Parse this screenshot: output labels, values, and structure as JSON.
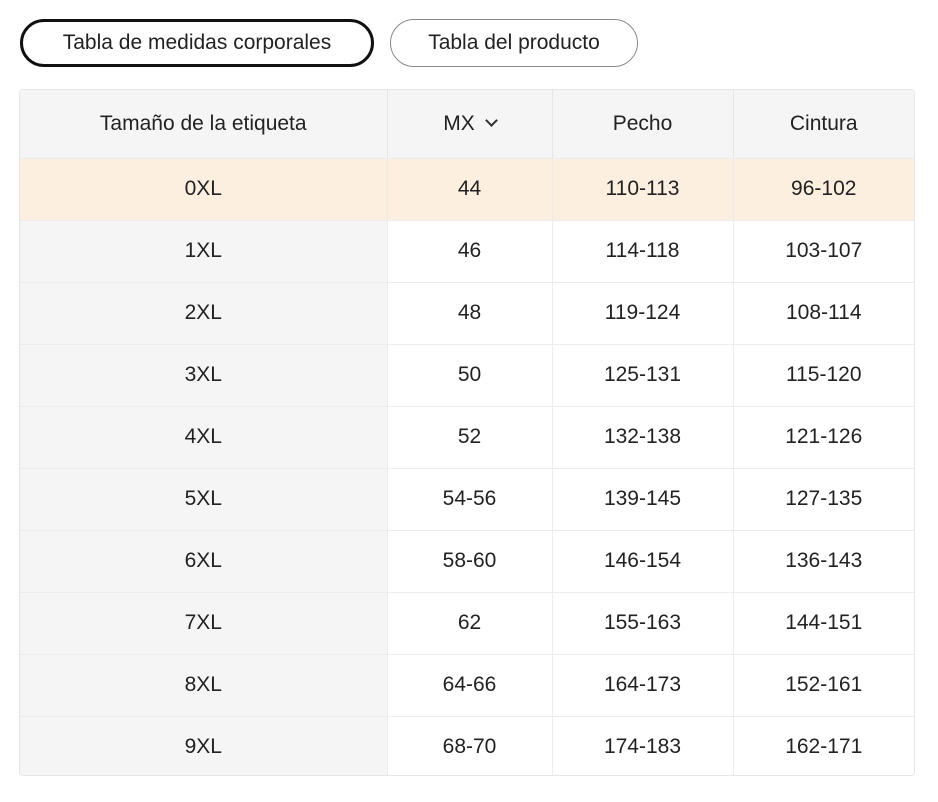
{
  "tabs": [
    {
      "label": "Tabla de medidas corporales",
      "active": true
    },
    {
      "label": "Tabla del producto",
      "active": false
    }
  ],
  "table": {
    "headers": [
      "Tamaño de la etiqueta",
      "MX",
      "Pecho",
      "Cintura"
    ],
    "rows": [
      [
        "0XL",
        "44",
        "110-113",
        "96-102"
      ],
      [
        "1XL",
        "46",
        "114-118",
        "103-107"
      ],
      [
        "2XL",
        "48",
        "119-124",
        "108-114"
      ],
      [
        "3XL",
        "50",
        "125-131",
        "115-120"
      ],
      [
        "4XL",
        "52",
        "132-138",
        "121-126"
      ],
      [
        "5XL",
        "54-56",
        "139-145",
        "127-135"
      ],
      [
        "6XL",
        "58-60",
        "146-154",
        "136-143"
      ],
      [
        "7XL",
        "62",
        "155-163",
        "144-151"
      ],
      [
        "8XL",
        "64-66",
        "164-173",
        "152-161"
      ],
      [
        "9XL",
        "68-70",
        "174-183",
        "162-171"
      ]
    ]
  }
}
